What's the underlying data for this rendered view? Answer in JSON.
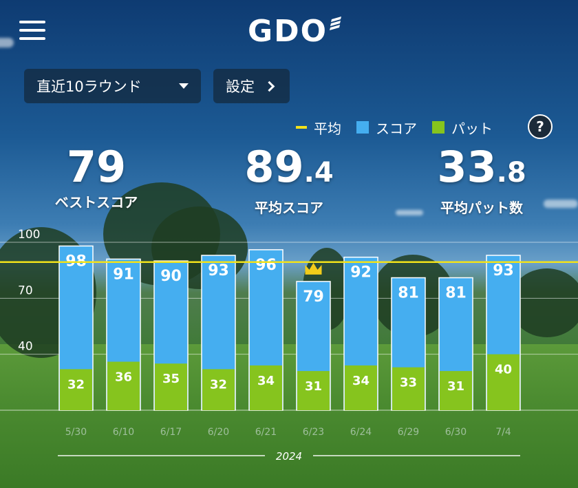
{
  "header": {
    "logo_text": "GDO",
    "menu_icon": "hamburger-menu-icon"
  },
  "controls": {
    "range_label": "直近10ラウンド",
    "settings_label": "設定"
  },
  "legend": {
    "average": "平均",
    "score": "スコア",
    "putt": "パット",
    "help": "?"
  },
  "stats": {
    "best": {
      "value": "79",
      "label": "ベストスコア"
    },
    "avg_score": {
      "int": "89",
      "dec": ".4",
      "label": "平均スコア"
    },
    "avg_putt": {
      "int": "33",
      "dec": ".8",
      "label": "平均パット数"
    }
  },
  "colors": {
    "score": "#45aef0",
    "putt": "#86c41e",
    "average": "#f2e21a",
    "crown": "#f2cc1a"
  },
  "chart_data": {
    "type": "bar",
    "categories": [
      "5/30",
      "6/10",
      "6/17",
      "6/20",
      "6/21",
      "6/23",
      "6/24",
      "6/29",
      "6/30",
      "7/4"
    ],
    "series": [
      {
        "name": "スコア",
        "values": [
          98,
          91,
          90,
          93,
          96,
          79,
          92,
          81,
          81,
          93
        ]
      },
      {
        "name": "パット",
        "values": [
          32,
          36,
          35,
          32,
          34,
          31,
          34,
          33,
          31,
          40
        ]
      }
    ],
    "average": 89.4,
    "best_index": 5,
    "yticks": [
      40,
      70,
      100
    ],
    "ylim": [
      10,
      100
    ],
    "xlabel": "2024",
    "grid": true
  }
}
